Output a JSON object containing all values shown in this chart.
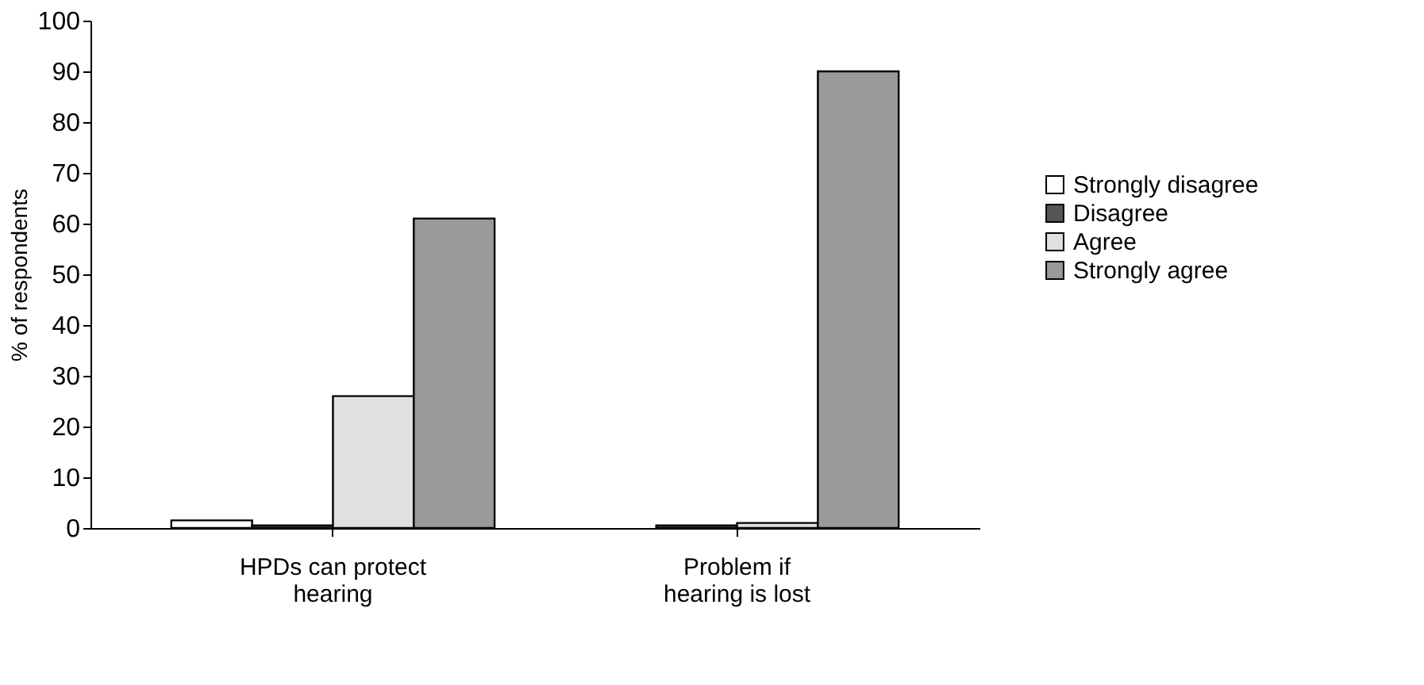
{
  "chart_data": {
    "type": "bar",
    "ylabel": "% of respondents",
    "categories": [
      "HPDs can protect\nhearing",
      "Problem if\nhearing is lost"
    ],
    "series": [
      {
        "name": "Strongly disagree",
        "color": "#ffffff",
        "values": [
          1.5,
          null
        ]
      },
      {
        "name": "Disagree",
        "color": "#555555",
        "values": [
          0.5,
          0.5
        ]
      },
      {
        "name": "Agree",
        "color": "#e0e0e0",
        "values": [
          26,
          1
        ]
      },
      {
        "name": "Strongly agree",
        "color": "#999999",
        "values": [
          61,
          90
        ]
      }
    ],
    "ylim": [
      0,
      100
    ],
    "yticks": [
      0,
      10,
      20,
      30,
      40,
      50,
      60,
      70,
      80,
      90,
      100
    ],
    "grid": false,
    "legend": "right"
  }
}
